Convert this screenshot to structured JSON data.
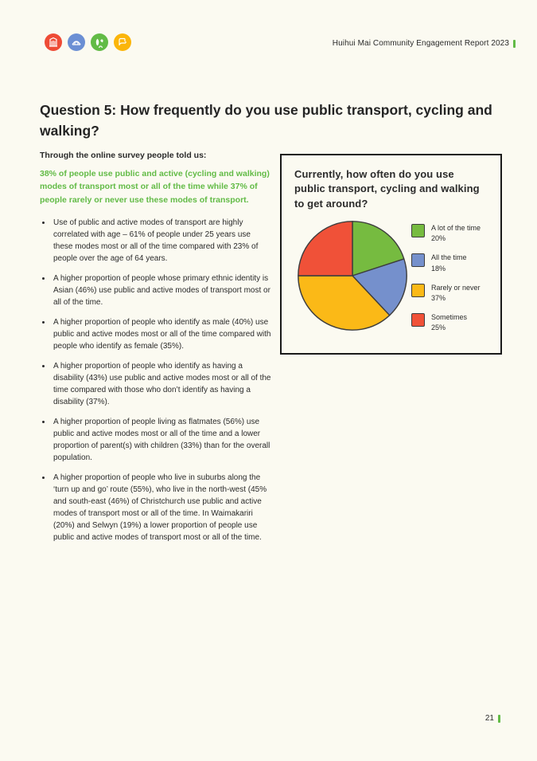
{
  "header": {
    "report_title": "Huihui Mai Community Engagement Report 2023",
    "logos": [
      {
        "name": "building-icon",
        "color": "#EE4B36"
      },
      {
        "name": "stadium-icon",
        "color": "#6B8FD4"
      },
      {
        "name": "cycling-icon",
        "color": "#62BB46"
      },
      {
        "name": "road-icon",
        "color": "#FBB50A"
      }
    ]
  },
  "question": {
    "label": "Question 5:",
    "text": " How frequently do you use public transport, cycling and walking?"
  },
  "survey": {
    "intro": "Through the online survey people told us:",
    "highlight": "38% of people use public and active (cycling and walking) modes of transport most or all of the time while 37% of people rarely or never use these modes of transport.",
    "bullets": [
      "Use of public and active modes of transport are highly correlated with age – 61% of people under 25 years use these modes most or all of the time compared with 23% of people over the age of 64 years.",
      "A higher proportion of people whose primary ethnic identity is Asian (46%) use public and active modes of transport most or all of the time.",
      "A higher proportion of people who identify as male (40%) use public and active modes most or all of the time compared with people who identify as female (35%).",
      "A higher proportion of people who identify as having a disability (43%) use public and active modes most or all of the time compared with those who don’t identify as having a disability (37%).",
      "A higher proportion of people living as flatmates (56%) use public and active modes most or all of the time and a lower proportion of parent(s) with children (33%) than for the overall population.",
      "A higher proportion of people who live in suburbs along the ‘turn up and go’ route (55%), who live in the north-west (45% and south-east (46%) of Christchurch use public and active modes of transport most or all of the time. In Waimakariri (20%) and Selwyn (19%) a lower proportion of people use public and active modes of transport most or all of the time."
    ]
  },
  "chart_data": {
    "type": "pie",
    "title": "Currently, how often do you use public transport, cycling and walking to get around?",
    "start_angle_deg": 0,
    "direction": "clockwise",
    "legend_position": "right",
    "outline_color": "#3D3D3D",
    "slices": [
      {
        "label": "A lot of the time",
        "value": 20,
        "color": "#76BB40"
      },
      {
        "label": "All the time",
        "value": 18,
        "color": "#7590CC"
      },
      {
        "label": "Rarely or never",
        "value": 37,
        "color": "#FBB917"
      },
      {
        "label": "Sometimes",
        "value": 25,
        "color": "#F05138"
      }
    ]
  },
  "footer": {
    "page_number": "21"
  },
  "colors": {
    "accent_green": "#62BB46",
    "page_background": "#FBFAF1",
    "body_text": "#2B2B2B",
    "chart_border": "#1A1A1A"
  }
}
